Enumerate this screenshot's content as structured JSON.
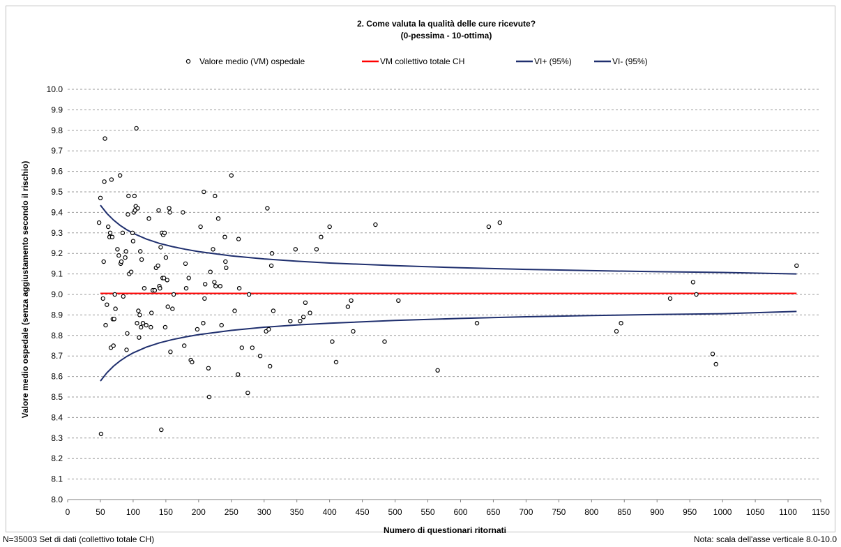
{
  "chart_data": {
    "type": "scatter",
    "title_line1": "2. Come valuta la qualità delle cure ricevute?",
    "title_line2": "(0-pessima - 10-ottima)",
    "xlabel": "Numero di questionari ritornati",
    "ylabel": "Valore medio ospedale (senza aggiustamento secondo il rischio)",
    "xlim": [
      0,
      1150
    ],
    "ylim": [
      8.0,
      10.0
    ],
    "x_ticks": [
      "0",
      "50",
      "100",
      "150",
      "200",
      "250",
      "300",
      "350",
      "400",
      "450",
      "500",
      "550",
      "600",
      "650",
      "700",
      "750",
      "800",
      "850",
      "900",
      "950",
      "1000",
      "1050",
      "1100",
      "1150"
    ],
    "y_ticks": [
      "8.0",
      "8.1",
      "8.2",
      "8.3",
      "8.4",
      "8.5",
      "8.6",
      "8.7",
      "8.8",
      "8.9",
      "9.0",
      "9.1",
      "9.2",
      "9.3",
      "9.4",
      "9.5",
      "9.6",
      "9.7",
      "9.8",
      "9.9",
      "10.0"
    ],
    "grid": "horizontal dashed",
    "legend_position": "top",
    "legend": [
      {
        "label": "Valore medio (VM) ospedale",
        "kind": "marker",
        "color": "#000000"
      },
      {
        "label": "VM collettivo totale CH",
        "kind": "line",
        "color": "#ff0000"
      },
      {
        "label": "VI+ (95%)",
        "kind": "line",
        "color": "#1f2f6e"
      },
      {
        "label": "VI- (95%)",
        "kind": "line",
        "color": "#1f2f6e"
      }
    ],
    "reference_mean": 9.005,
    "ci_upper": [
      [
        50,
        9.435
      ],
      [
        60,
        9.395
      ],
      [
        70,
        9.363
      ],
      [
        80,
        9.337
      ],
      [
        90,
        9.316
      ],
      [
        100,
        9.298
      ],
      [
        120,
        9.27
      ],
      [
        140,
        9.249
      ],
      [
        160,
        9.233
      ],
      [
        180,
        9.22
      ],
      [
        200,
        9.209
      ],
      [
        250,
        9.188
      ],
      [
        300,
        9.173
      ],
      [
        350,
        9.162
      ],
      [
        400,
        9.153
      ],
      [
        500,
        9.14
      ],
      [
        600,
        9.13
      ],
      [
        700,
        9.122
      ],
      [
        800,
        9.116
      ],
      [
        900,
        9.111
      ],
      [
        1000,
        9.107
      ],
      [
        1113,
        9.1
      ]
    ],
    "ci_lower": [
      [
        50,
        8.578
      ],
      [
        60,
        8.618
      ],
      [
        70,
        8.65
      ],
      [
        80,
        8.676
      ],
      [
        90,
        8.697
      ],
      [
        100,
        8.715
      ],
      [
        120,
        8.743
      ],
      [
        140,
        8.764
      ],
      [
        160,
        8.78
      ],
      [
        180,
        8.793
      ],
      [
        200,
        8.804
      ],
      [
        250,
        8.825
      ],
      [
        300,
        8.84
      ],
      [
        350,
        8.851
      ],
      [
        400,
        8.86
      ],
      [
        500,
        8.873
      ],
      [
        600,
        8.883
      ],
      [
        700,
        8.891
      ],
      [
        800,
        8.897
      ],
      [
        900,
        8.902
      ],
      [
        1000,
        8.906
      ],
      [
        1113,
        8.917
      ]
    ],
    "points": [
      [
        48,
        9.35
      ],
      [
        50,
        9.47
      ],
      [
        51,
        8.32
      ],
      [
        54,
        8.98
      ],
      [
        55,
        9.16
      ],
      [
        56,
        9.55
      ],
      [
        57,
        9.76
      ],
      [
        58,
        8.85
      ],
      [
        60,
        8.95
      ],
      [
        62,
        9.33
      ],
      [
        64,
        9.28
      ],
      [
        65,
        9.3
      ],
      [
        66,
        8.74
      ],
      [
        67,
        9.56
      ],
      [
        68,
        9.28
      ],
      [
        69,
        8.88
      ],
      [
        70,
        8.75
      ],
      [
        71,
        8.88
      ],
      [
        72,
        9.0
      ],
      [
        73,
        8.93
      ],
      [
        76,
        9.22
      ],
      [
        78,
        9.19
      ],
      [
        80,
        9.58
      ],
      [
        81,
        9.15
      ],
      [
        82,
        9.16
      ],
      [
        84,
        9.3
      ],
      [
        85,
        8.99
      ],
      [
        88,
        9.18
      ],
      [
        89,
        9.21
      ],
      [
        90,
        8.73
      ],
      [
        91,
        8.81
      ],
      [
        92,
        9.39
      ],
      [
        93,
        9.48
      ],
      [
        94,
        9.1
      ],
      [
        97,
        9.11
      ],
      [
        99,
        9.3
      ],
      [
        100,
        9.26
      ],
      [
        101,
        9.4
      ],
      [
        102,
        9.48
      ],
      [
        103,
        9.41
      ],
      [
        104,
        9.43
      ],
      [
        105,
        9.81
      ],
      [
        106,
        8.86
      ],
      [
        107,
        9.42
      ],
      [
        108,
        8.92
      ],
      [
        109,
        8.79
      ],
      [
        110,
        8.9
      ],
      [
        111,
        9.21
      ],
      [
        112,
        8.84
      ],
      [
        113,
        9.17
      ],
      [
        115,
        8.86
      ],
      [
        117,
        9.03
      ],
      [
        120,
        8.85
      ],
      [
        124,
        9.37
      ],
      [
        127,
        8.84
      ],
      [
        128,
        8.91
      ],
      [
        130,
        9.02
      ],
      [
        133,
        9.02
      ],
      [
        135,
        9.13
      ],
      [
        138,
        9.14
      ],
      [
        139,
        9.41
      ],
      [
        140,
        9.04
      ],
      [
        141,
        9.03
      ],
      [
        142,
        9.23
      ],
      [
        143,
        8.34
      ],
      [
        144,
        9.3
      ],
      [
        145,
        9.08
      ],
      [
        146,
        9.29
      ],
      [
        147,
        9.08
      ],
      [
        148,
        9.3
      ],
      [
        149,
        8.84
      ],
      [
        150,
        9.18
      ],
      [
        152,
        9.07
      ],
      [
        153,
        8.94
      ],
      [
        155,
        9.42
      ],
      [
        156,
        9.4
      ],
      [
        157,
        8.72
      ],
      [
        160,
        8.93
      ],
      [
        162,
        9.0
      ],
      [
        176,
        9.4
      ],
      [
        178,
        8.75
      ],
      [
        180,
        9.15
      ],
      [
        181,
        9.03
      ],
      [
        185,
        9.08
      ],
      [
        188,
        8.68
      ],
      [
        190,
        8.67
      ],
      [
        198,
        8.83
      ],
      [
        203,
        9.33
      ],
      [
        207,
        8.86
      ],
      [
        208,
        9.5
      ],
      [
        209,
        8.98
      ],
      [
        210,
        9.05
      ],
      [
        215,
        8.64
      ],
      [
        216,
        8.5
      ],
      [
        218,
        9.11
      ],
      [
        222,
        9.22
      ],
      [
        224,
        9.06
      ],
      [
        225,
        9.48
      ],
      [
        226,
        9.04
      ],
      [
        230,
        9.37
      ],
      [
        233,
        9.04
      ],
      [
        235,
        8.85
      ],
      [
        240,
        9.28
      ],
      [
        241,
        9.16
      ],
      [
        242,
        9.13
      ],
      [
        250,
        9.58
      ],
      [
        255,
        8.92
      ],
      [
        260,
        8.61
      ],
      [
        261,
        9.27
      ],
      [
        262,
        9.03
      ],
      [
        266,
        8.74
      ],
      [
        275,
        8.52
      ],
      [
        277,
        9.0
      ],
      [
        282,
        8.74
      ],
      [
        294,
        8.7
      ],
      [
        303,
        8.82
      ],
      [
        305,
        9.42
      ],
      [
        307,
        8.83
      ],
      [
        309,
        8.65
      ],
      [
        311,
        9.14
      ],
      [
        312,
        9.2
      ],
      [
        314,
        8.92
      ],
      [
        340,
        8.87
      ],
      [
        348,
        9.22
      ],
      [
        355,
        8.87
      ],
      [
        360,
        8.89
      ],
      [
        363,
        8.96
      ],
      [
        370,
        8.91
      ],
      [
        380,
        9.22
      ],
      [
        387,
        9.28
      ],
      [
        400,
        9.33
      ],
      [
        404,
        8.77
      ],
      [
        410,
        8.67
      ],
      [
        428,
        8.94
      ],
      [
        433,
        8.97
      ],
      [
        436,
        8.82
      ],
      [
        470,
        9.34
      ],
      [
        484,
        8.77
      ],
      [
        505,
        8.97
      ],
      [
        565,
        8.63
      ],
      [
        625,
        8.86
      ],
      [
        643,
        9.33
      ],
      [
        660,
        9.35
      ],
      [
        838,
        8.82
      ],
      [
        845,
        8.86
      ],
      [
        920,
        8.98
      ],
      [
        955,
        9.06
      ],
      [
        960,
        9.0
      ],
      [
        985,
        8.71
      ],
      [
        990,
        8.66
      ],
      [
        1113,
        9.14
      ]
    ]
  },
  "footer": {
    "left": "N=35003 Set di dati (collettivo totale CH)",
    "right": "Nota: scala dell'asse verticale 8.0-10.0"
  }
}
